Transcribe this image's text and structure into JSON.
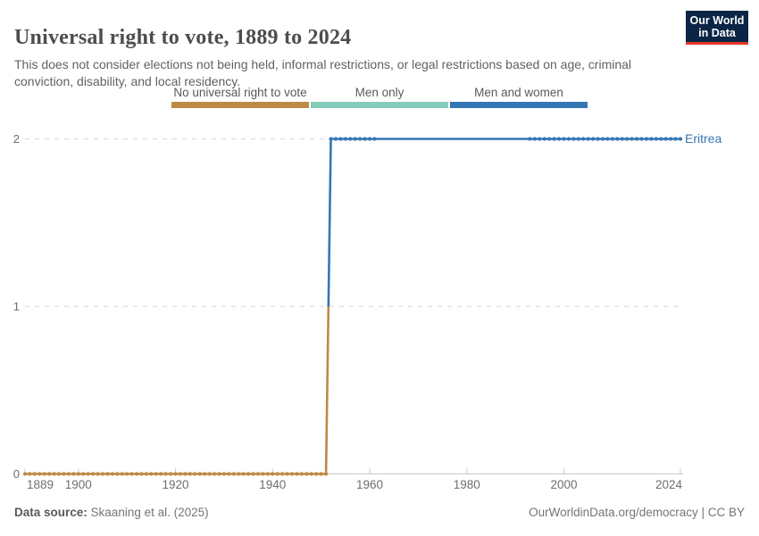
{
  "header": {
    "title": "Universal right to vote, 1889 to 2024",
    "subtitle": "This does not consider elections not being held, informal restrictions, or legal restrictions based on age, criminal conviction, disability, and local residency.",
    "logo": {
      "line1": "Our World",
      "line2": "in Data"
    }
  },
  "legend": {
    "items": [
      {
        "label": "No universal right to vote",
        "color": "#bd8a44"
      },
      {
        "label": "Men only",
        "color": "#85ccba"
      },
      {
        "label": "Men and women",
        "color": "#3577b3"
      }
    ]
  },
  "chart_data": {
    "type": "line",
    "title": "Universal right to vote, 1889 to 2024",
    "xlabel": "",
    "ylabel": "",
    "x_range": [
      1889,
      2024
    ],
    "ylim": [
      0,
      2
    ],
    "y_ticks": [
      0,
      1,
      2
    ],
    "x_ticks": [
      1889,
      1900,
      1920,
      1940,
      1960,
      1980,
      2000,
      2024
    ],
    "grid": "dashed horizontal at y=1 and y=2",
    "legend_position": "top center",
    "value_labels": {
      "0": "No universal right to vote",
      "1": "Men only",
      "2": "Men and women"
    },
    "value_colors": {
      "0": "#bd8a44",
      "1": "#85ccba",
      "2": "#3577b3"
    },
    "series": [
      {
        "name": "Eritrea",
        "color": "#3577b3",
        "segments": [
          {
            "start_year": 1889,
            "end_year": 1951,
            "value": 0,
            "markers": true
          },
          {
            "start_year": 1952,
            "end_year": 1961,
            "value": 2,
            "markers": true
          },
          {
            "start_year": 1962,
            "end_year": 1992,
            "value": 2,
            "markers": false
          },
          {
            "start_year": 1993,
            "end_year": 2024,
            "value": 2,
            "markers": true
          }
        ]
      }
    ]
  },
  "footer": {
    "source_label": "Data source:",
    "source_value": "Skaaning et al. (2025)",
    "license": "OurWorldinData.org/democracy | CC BY"
  },
  "colors": {
    "logo_bg": "#0b2546",
    "logo_accent": "#e3362a",
    "gridline": "#d7d7d7",
    "axis": "#c9c9c9",
    "tick_label": "#6e6e6e"
  }
}
